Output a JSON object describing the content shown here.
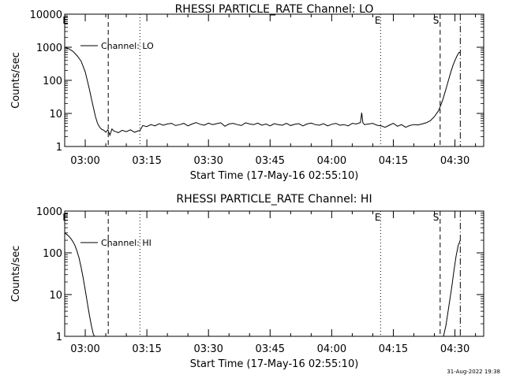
{
  "footer_timestamp": "31-Aug-2022 19:38",
  "chart_data": [
    {
      "type": "line",
      "title": "RHESSI PARTICLE_RATE Channel: LO",
      "xlabel": "Start Time (17-May-16 02:55:10)",
      "ylabel": "Counts/sec",
      "y_scale": "log",
      "ylim": [
        1,
        10000
      ],
      "y_ticks": [
        1,
        10,
        100,
        1000,
        10000
      ],
      "y_tick_labels": [
        "1",
        "10",
        "100",
        "1000",
        "10000"
      ],
      "x_range_min": [
        -5,
        97
      ],
      "x_ticks_min": [
        0,
        15,
        30,
        45,
        60,
        75,
        90
      ],
      "x_tick_labels": [
        "03:00",
        "03:15",
        "03:30",
        "03:45",
        "04:00",
        "04:15",
        "04:30"
      ],
      "legend": {
        "label": "Channel: LO",
        "placement": "top-left"
      },
      "vlines": [
        {
          "x": 5.6,
          "style": "dashed"
        },
        {
          "x": 13.3,
          "style": "dotted"
        },
        {
          "x": 71.9,
          "style": "dotted"
        },
        {
          "x": 86.4,
          "style": "dashed"
        },
        {
          "x": 91.3,
          "style": "dashdot"
        }
      ],
      "markers": [
        {
          "text": "E",
          "x": -4.8
        },
        {
          "text": "E",
          "x": 71.2
        },
        {
          "text": "S",
          "x": 85.4
        }
      ],
      "series": [
        {
          "x": [
            -5,
            -4,
            -3,
            -2,
            -1,
            0,
            0.5,
            1,
            1.5,
            2,
            2.5,
            3,
            3.5,
            4,
            4.5,
            5,
            5.5,
            6,
            6.5,
            7,
            7.5,
            8,
            9,
            10,
            11,
            12,
            13,
            13.3,
            14,
            15,
            16,
            17,
            18,
            19,
            20,
            21,
            22,
            23,
            24,
            25,
            26,
            27,
            28,
            29,
            30,
            31,
            32,
            33,
            34,
            35,
            36,
            37,
            38,
            39,
            40,
            41,
            42,
            43,
            44,
            45,
            46,
            47,
            48,
            49,
            50,
            51,
            52,
            53,
            54,
            55,
            56,
            57,
            58,
            59,
            60,
            61,
            62,
            63,
            64,
            65,
            66,
            67,
            67.3,
            67.6,
            68,
            69,
            70,
            71,
            72,
            73,
            74,
            75,
            76,
            77,
            78,
            79,
            80,
            81,
            82,
            83,
            84,
            85,
            86,
            86.5,
            87,
            87.5,
            88,
            88.5,
            89,
            89.5,
            90,
            90.5,
            91,
            91.3
          ],
          "y": [
            1000,
            900,
            750,
            560,
            380,
            180,
            100,
            55,
            28,
            15,
            8,
            5,
            3.8,
            3.3,
            3.1,
            2.7,
            3.2,
            2.2,
            3.4,
            2.9,
            2.8,
            2.6,
            3.1,
            2.8,
            3.2,
            2.7,
            3.0,
            3.0,
            4.3,
            4.0,
            4.6,
            4.2,
            4.9,
            4.4,
            4.8,
            5.0,
            4.3,
            4.6,
            5.0,
            4.2,
            4.8,
            5.3,
            4.7,
            4.4,
            5.1,
            4.6,
            4.9,
            5.2,
            4.1,
            4.8,
            5.0,
            4.6,
            4.3,
            5.2,
            4.8,
            4.6,
            5.1,
            4.4,
            4.8,
            4.2,
            4.9,
            4.6,
            4.4,
            5.0,
            4.3,
            4.7,
            4.9,
            4.2,
            4.8,
            5.1,
            4.6,
            4.4,
            4.9,
            4.2,
            4.7,
            5.0,
            4.4,
            4.6,
            4.2,
            5.0,
            4.8,
            5.3,
            10.5,
            5.2,
            4.6,
            4.8,
            5.0,
            4.4,
            4.2,
            3.8,
            4.4,
            5.0,
            4.1,
            4.6,
            3.8,
            4.3,
            4.6,
            4.5,
            4.8,
            5.2,
            6.0,
            8.0,
            12,
            17,
            25,
            40,
            65,
            110,
            180,
            280,
            400,
            550,
            700,
            700
          ]
        }
      ]
    },
    {
      "type": "line",
      "title": "RHESSI PARTICLE_RATE Channel: HI",
      "xlabel": "Start Time (17-May-16 02:55:10)",
      "ylabel": "Counts/sec",
      "y_scale": "log",
      "ylim": [
        1,
        1000
      ],
      "y_ticks": [
        1,
        10,
        100,
        1000
      ],
      "y_tick_labels": [
        "1",
        "10",
        "100",
        "1000"
      ],
      "x_range_min": [
        -5,
        97
      ],
      "x_ticks_min": [
        0,
        15,
        30,
        45,
        60,
        75,
        90
      ],
      "x_tick_labels": [
        "03:00",
        "03:15",
        "03:30",
        "03:45",
        "04:00",
        "04:15",
        "04:30"
      ],
      "legend": {
        "label": "Channel: HI",
        "placement": "top-left"
      },
      "vlines": [
        {
          "x": 5.6,
          "style": "dashed"
        },
        {
          "x": 13.3,
          "style": "dotted"
        },
        {
          "x": 71.9,
          "style": "dotted"
        },
        {
          "x": 86.4,
          "style": "dashed"
        },
        {
          "x": 91.3,
          "style": "dashdot"
        }
      ],
      "markers": [
        {
          "text": "E",
          "x": -4.8
        },
        {
          "text": "E",
          "x": 71.2
        },
        {
          "text": "S",
          "x": 85.4
        }
      ],
      "series": [
        {
          "segments": [
            {
              "x": [
                -5,
                -4.5,
                -4,
                -3.5,
                -3,
                -2.5,
                -2,
                -1.5,
                -1,
                -0.5,
                0,
                0.5,
                1,
                1.5,
                2,
                2.3
              ],
              "y": [
                300,
                275,
                250,
                220,
                185,
                150,
                110,
                75,
                45,
                25,
                13,
                6.5,
                3.3,
                1.8,
                1.1,
                1.0
              ]
            },
            {
              "x": [
                87.2,
                87.8,
                88.3,
                88.8,
                89.3,
                89.8,
                90.3,
                90.8,
                91.3
              ],
              "y": [
                1.0,
                1.8,
                3.8,
                8,
                17,
                40,
                85,
                150,
                200
              ]
            }
          ]
        }
      ]
    }
  ]
}
